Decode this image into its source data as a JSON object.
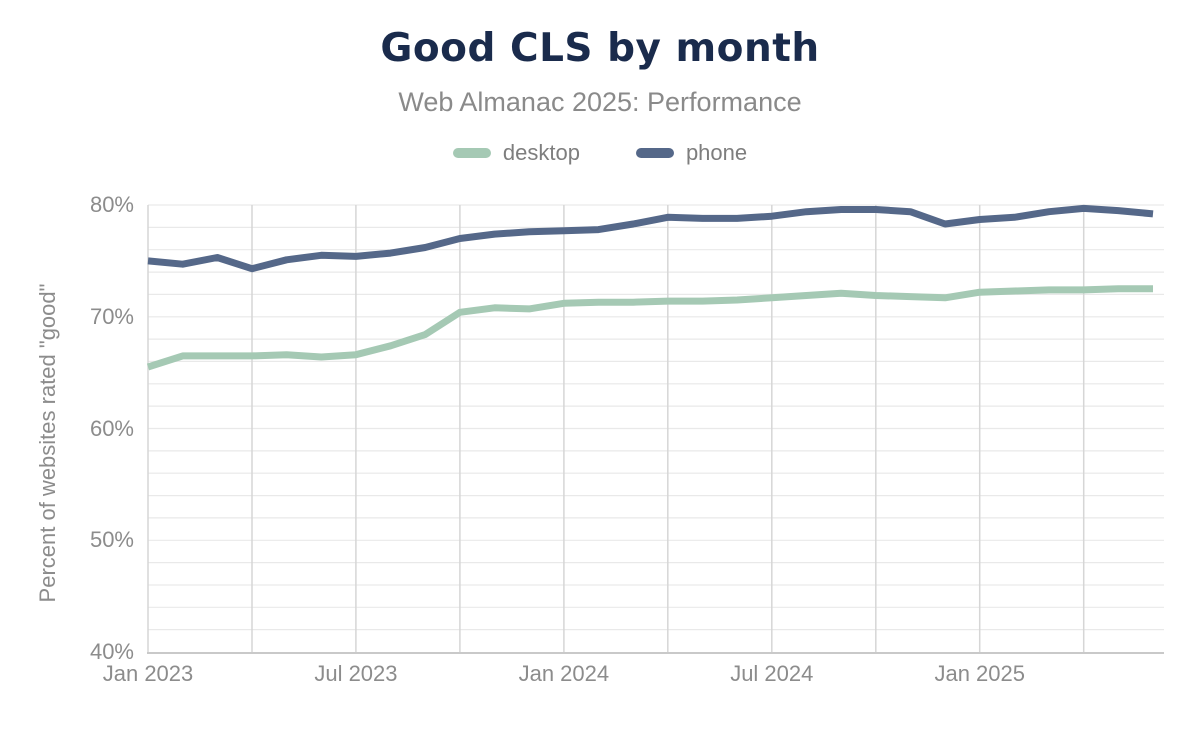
{
  "header": {
    "title": "Good CLS by month",
    "subtitle": "Web Almanac 2025: Performance"
  },
  "legend": {
    "items": [
      {
        "label": "desktop",
        "color": "#a5c9b4"
      },
      {
        "label": "phone",
        "color": "#556889"
      }
    ]
  },
  "axes": {
    "y_title": "Percent of websites rated \"good\"",
    "y_tick_labels": [
      "80%",
      "70%",
      "60%",
      "50%",
      "40%"
    ],
    "x_tick_labels": [
      "Jan 2023",
      "Jul 2023",
      "Jan 2024",
      "Jul 2024",
      "Jan 2025"
    ]
  },
  "colors": {
    "title": "#1a2b4c",
    "subtitle": "#8a8a8a",
    "axis_label": "#8c8c8c",
    "legend_label": "#7e7e7e",
    "grid_minor": "#e9e9e9",
    "grid_vertical": "#d6d6d6",
    "axis_line": "#c9c9c9",
    "background": "#ffffff"
  },
  "chart_data": {
    "type": "line",
    "title": "Good CLS by month",
    "subtitle": "Web Almanac 2025: Performance",
    "xlabel": "",
    "ylabel": "Percent of websites rated \"good\"",
    "ylim": [
      40,
      80
    ],
    "y_tick_step": 10,
    "y_minor_grid_step": 2,
    "x_gridline_every_months": 3,
    "legend_position": "top",
    "grid": true,
    "x": [
      "Jan 2023",
      "Feb 2023",
      "Mar 2023",
      "Apr 2023",
      "May 2023",
      "Jun 2023",
      "Jul 2023",
      "Aug 2023",
      "Sep 2023",
      "Oct 2023",
      "Nov 2023",
      "Dec 2023",
      "Jan 2024",
      "Feb 2024",
      "Mar 2024",
      "Apr 2024",
      "May 2024",
      "Jun 2024",
      "Jul 2024",
      "Aug 2024",
      "Sep 2024",
      "Oct 2024",
      "Nov 2024",
      "Dec 2024",
      "Jan 2025",
      "Feb 2025",
      "Mar 2025",
      "Apr 2025",
      "May 2025",
      "Jun 2025"
    ],
    "x_ticks": [
      {
        "index": 0,
        "label": "Jan 2023"
      },
      {
        "index": 6,
        "label": "Jul 2023"
      },
      {
        "index": 12,
        "label": "Jan 2024"
      },
      {
        "index": 18,
        "label": "Jul 2024"
      },
      {
        "index": 24,
        "label": "Jan 2025"
      }
    ],
    "y_ticks": [
      {
        "value": 40,
        "label": "40%"
      },
      {
        "value": 50,
        "label": "50%"
      },
      {
        "value": 60,
        "label": "60%"
      },
      {
        "value": 70,
        "label": "70%"
      },
      {
        "value": 80,
        "label": "80%"
      }
    ],
    "series": [
      {
        "name": "desktop",
        "color": "#a5c9b4",
        "values": [
          65.5,
          66.5,
          66.5,
          66.5,
          66.6,
          66.4,
          66.6,
          67.4,
          68.4,
          70.4,
          70.8,
          70.7,
          71.2,
          71.3,
          71.3,
          71.4,
          71.4,
          71.5,
          71.7,
          71.9,
          72.1,
          71.9,
          71.8,
          71.7,
          72.2,
          72.3,
          72.4,
          72.4,
          72.5,
          72.5
        ]
      },
      {
        "name": "phone",
        "color": "#556889",
        "values": [
          75.0,
          74.7,
          75.3,
          74.3,
          75.1,
          75.5,
          75.4,
          75.7,
          76.2,
          77.0,
          77.4,
          77.6,
          77.7,
          77.8,
          78.3,
          78.9,
          78.8,
          78.8,
          79.0,
          79.4,
          79.6,
          79.6,
          79.4,
          78.3,
          78.7,
          78.9,
          79.4,
          79.7,
          79.5,
          79.2
        ]
      }
    ]
  }
}
